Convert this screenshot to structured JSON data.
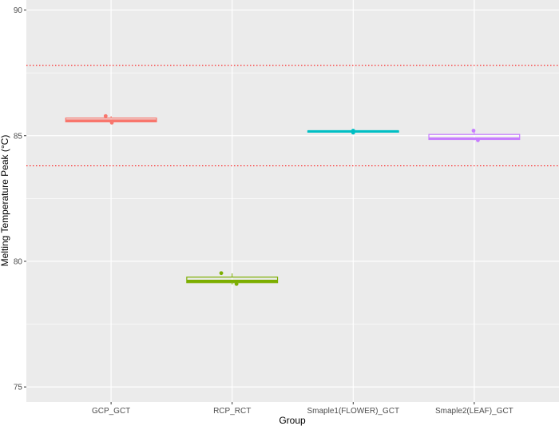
{
  "chart_data": {
    "type": "boxplot",
    "title": "",
    "xlabel": "Group",
    "ylabel": "Melting Temperature Peak (°C)",
    "ylim": [
      74.4,
      90.4
    ],
    "y_ticks": [
      75,
      80,
      85,
      90
    ],
    "y_tick_labels": [
      "75",
      "80",
      "85",
      "90"
    ],
    "grid": true,
    "legend": "none",
    "categories": [
      "GCP_GCT",
      "RCP_RCT",
      "Smaple1(FLOWER)_GCT",
      "Smaple2(LEAF)_GCT"
    ],
    "colors": [
      "#F8766D",
      "#7CAE00",
      "#00BFC4",
      "#C77CFF"
    ],
    "boxes": [
      {
        "group": "GCP_GCT",
        "q1": 85.55,
        "median": 85.6,
        "q3": 85.7,
        "whisker_low": 85.5,
        "whisker_high": 85.78
      },
      {
        "group": "RCP_RCT",
        "q1": 79.15,
        "median": 79.22,
        "q3": 79.37,
        "whisker_low": 79.08,
        "whisker_high": 79.52
      },
      {
        "group": "Smaple1(FLOWER)_GCT",
        "q1": 85.15,
        "median": 85.17,
        "q3": 85.19,
        "whisker_low": 85.12,
        "whisker_high": 85.22
      },
      {
        "group": "Smaple2(LEAF)_GCT",
        "q1": 84.85,
        "median": 84.88,
        "q3": 85.05,
        "whisker_low": 84.82,
        "whisker_high": 85.2
      }
    ],
    "points": [
      {
        "group": "GCP_GCT",
        "jitter": -0.15,
        "y": 85.78
      },
      {
        "group": "GCP_GCT",
        "jitter": 0.02,
        "y": 85.52
      },
      {
        "group": "RCP_RCT",
        "jitter": -0.3,
        "y": 79.53
      },
      {
        "group": "RCP_RCT",
        "jitter": 0.12,
        "y": 79.1
      },
      {
        "group": "Smaple1(FLOWER)_GCT",
        "jitter": 0.0,
        "y": 85.2
      },
      {
        "group": "Smaple1(FLOWER)_GCT",
        "jitter": 0.0,
        "y": 85.12
      },
      {
        "group": "Smaple2(LEAF)_GCT",
        "jitter": -0.02,
        "y": 85.2
      },
      {
        "group": "Smaple2(LEAF)_GCT",
        "jitter": 0.1,
        "y": 84.82
      }
    ],
    "reference_lines": [
      {
        "y": 87.8,
        "color": "#FF0000",
        "style": "dotted"
      },
      {
        "y": 83.8,
        "color": "#FF0000",
        "style": "dotted"
      }
    ]
  }
}
